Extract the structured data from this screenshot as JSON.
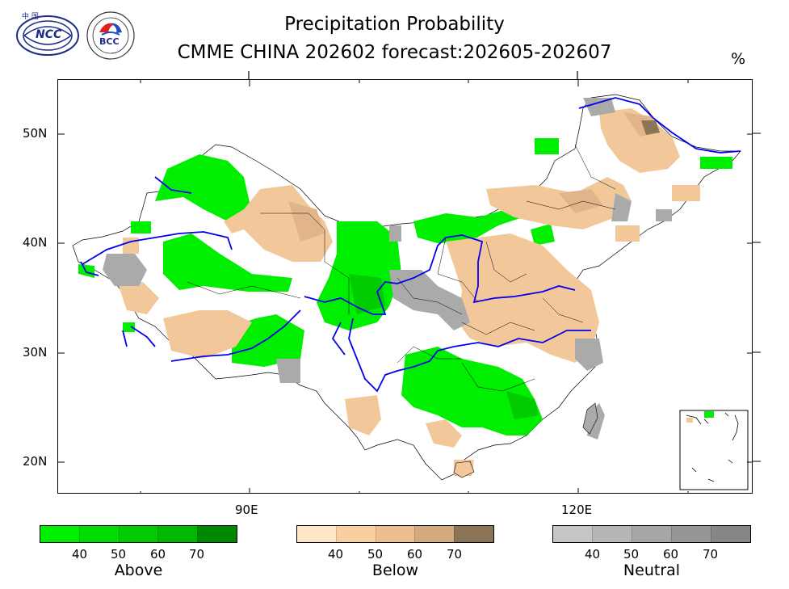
{
  "title_line1": "Precipitation Probability",
  "title_line2": "CMME CHINA 202602 forecast:202605-202607",
  "unit": "%",
  "logos": {
    "ncc_text": "NCC",
    "bcc_text": "BCC"
  },
  "axes": {
    "lat_labels": [
      "50N",
      "40N",
      "30N",
      "20N"
    ],
    "lon_labels": [
      "90E",
      "120E"
    ]
  },
  "legends": [
    {
      "name": "Above",
      "ticks": [
        "40",
        "50",
        "60",
        "70"
      ],
      "colors": [
        "#00ee00",
        "#00dd00",
        "#00cc00",
        "#00b800",
        "#008800"
      ]
    },
    {
      "name": "Below",
      "ticks": [
        "40",
        "50",
        "60",
        "70"
      ],
      "colors": [
        "#fde7c7",
        "#f7cfa0",
        "#edbf8f",
        "#d3a97e",
        "#8c7456"
      ]
    },
    {
      "name": "Neutral",
      "ticks": [
        "40",
        "50",
        "60",
        "70"
      ],
      "colors": [
        "#c6c6c6",
        "#b6b6b6",
        "#a6a6a6",
        "#969696",
        "#878787"
      ]
    }
  ]
}
